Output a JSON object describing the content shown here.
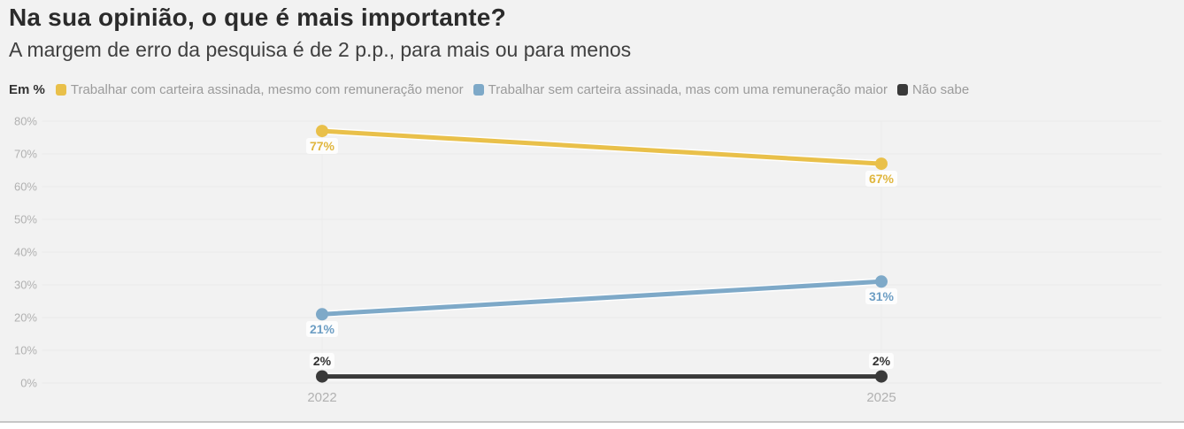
{
  "header": {
    "title": "Na sua opinião, o que é mais importante?",
    "subtitle": "A margem de erro da pesquisa é de 2 p.p., para mais ou para menos"
  },
  "legend": {
    "unit_label": "Em %"
  },
  "chart_data": {
    "type": "line",
    "categories": [
      "2022",
      "2025"
    ],
    "series": [
      {
        "name": "Trabalhar com carteira assinada, mesmo com remuneração menor",
        "values": [
          77,
          67
        ],
        "color": "#e9c04a",
        "label_color": "#e0b63e",
        "label_position": "below"
      },
      {
        "name": "Trabalhar sem carteira assinada, mas com uma remuneração maior",
        "values": [
          21,
          31
        ],
        "color": "#7ea9c8",
        "label_color": "#6d9ec4",
        "label_position": "below"
      },
      {
        "name": "Não sabe",
        "values": [
          2,
          2
        ],
        "color": "#3a3a3a",
        "label_color": "#333333",
        "label_position": "above"
      }
    ],
    "ylim": [
      0,
      80
    ],
    "ytick_step": 10,
    "tick_suffix": "%",
    "value_label_suffix": "%",
    "grid": true,
    "legend_position": "top"
  },
  "colors": {
    "background": "#f2f2f2",
    "title": "#2b2b2b",
    "subtitle": "#404040",
    "legend_text": "#9b9b9b",
    "axis_text": "#b1b1b1",
    "gridline": "#e9e9e9",
    "column_guide": "#ececec",
    "bottom_border": "#c6c6c6"
  }
}
